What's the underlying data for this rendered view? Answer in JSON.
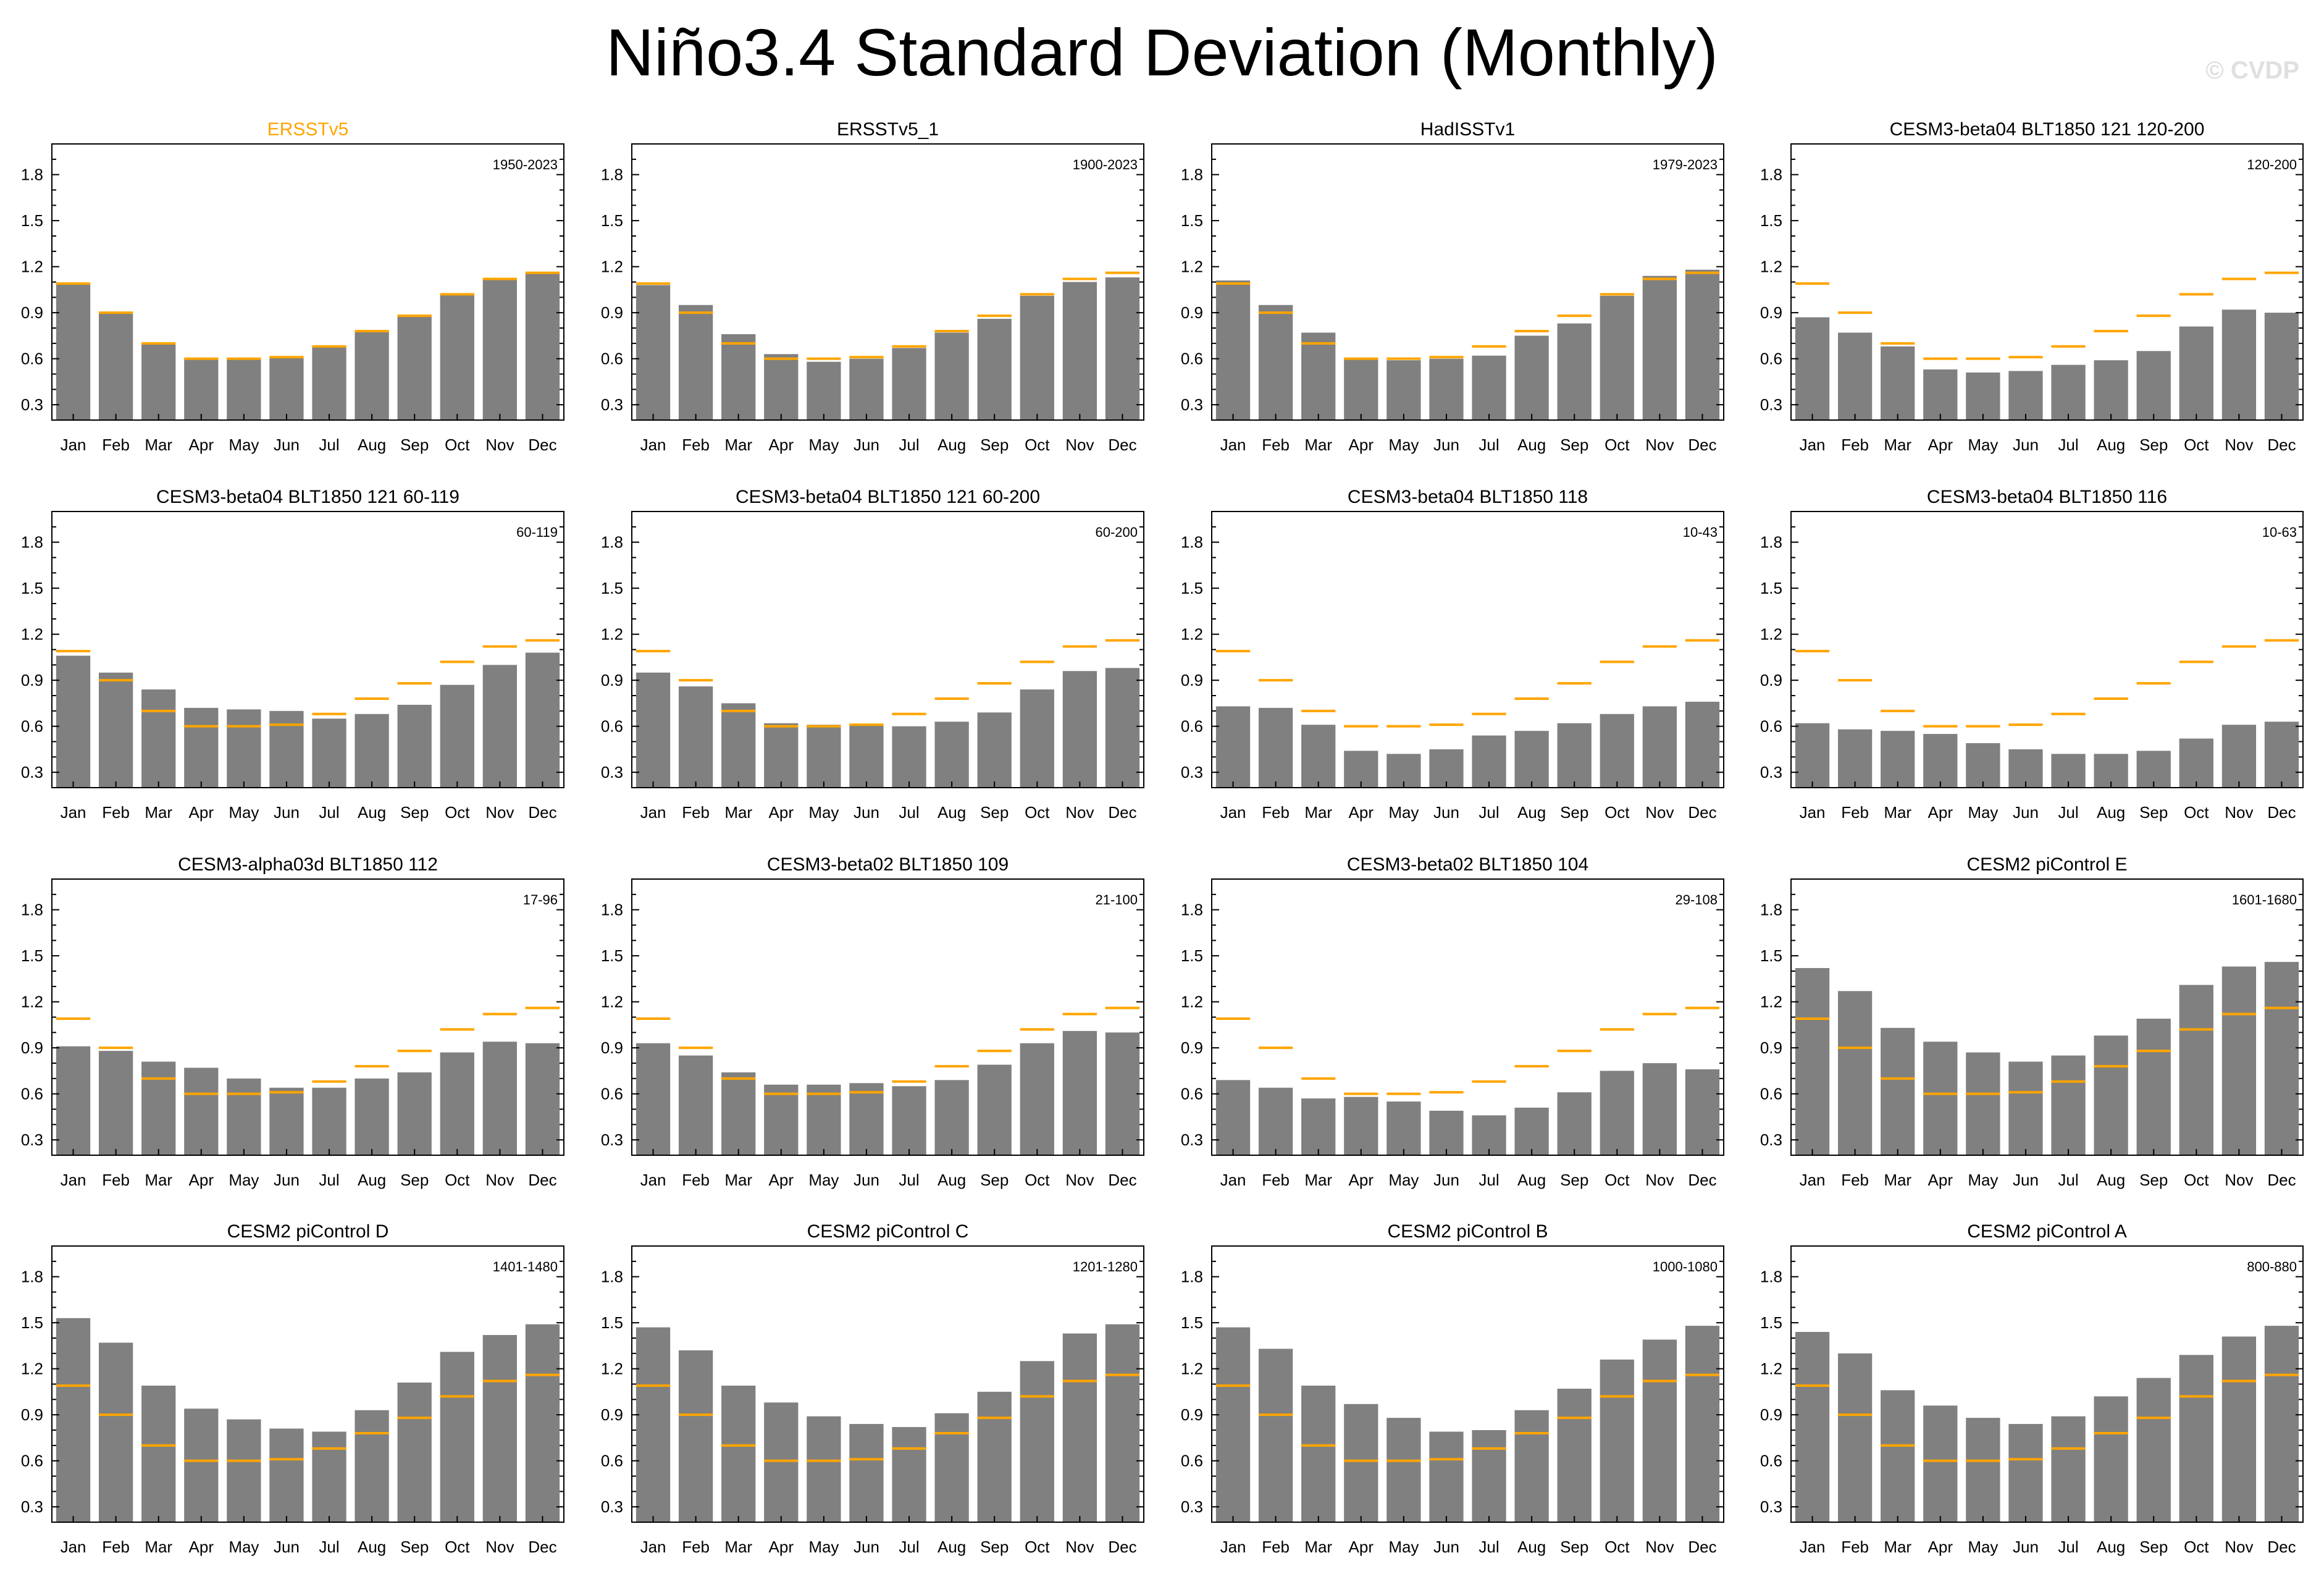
{
  "title": "Niño3.4 Standard Deviation (Monthly)",
  "watermark": "© CVDP",
  "colors": {
    "bar": "#808080",
    "reference": "#ffa500",
    "highlight_title": "#ffa500",
    "axis": "#000000"
  },
  "chart_data": {
    "type": "bar",
    "categories": [
      "Jan",
      "Feb",
      "Mar",
      "Apr",
      "May",
      "Jun",
      "Jul",
      "Aug",
      "Sep",
      "Oct",
      "Nov",
      "Dec"
    ],
    "ylim": [
      0.2,
      2.0
    ],
    "yticks": [
      0.3,
      0.6,
      0.9,
      1.2,
      1.5,
      1.8
    ],
    "ytick_labels": [
      "0.3",
      "0.6",
      "0.9",
      "1.2",
      "1.5",
      "1.8"
    ],
    "reference": {
      "name": "ERSSTv5",
      "values": [
        1.09,
        0.9,
        0.7,
        0.6,
        0.6,
        0.61,
        0.68,
        0.78,
        0.88,
        1.02,
        1.12,
        1.16
      ]
    },
    "panels": [
      {
        "title": "ERSSTv5",
        "period": "1950-2023",
        "is_reference": true,
        "values": [
          1.09,
          0.9,
          0.7,
          0.6,
          0.6,
          0.61,
          0.68,
          0.78,
          0.88,
          1.02,
          1.12,
          1.16
        ]
      },
      {
        "title": "ERSSTv5_1",
        "period": "1900-2023",
        "is_reference": false,
        "values": [
          1.08,
          0.95,
          0.76,
          0.63,
          0.58,
          0.6,
          0.67,
          0.77,
          0.86,
          1.01,
          1.1,
          1.13
        ]
      },
      {
        "title": "HadISSTv1",
        "period": "1979-2023",
        "is_reference": false,
        "values": [
          1.11,
          0.95,
          0.77,
          0.6,
          0.59,
          0.6,
          0.62,
          0.75,
          0.83,
          1.01,
          1.14,
          1.18
        ]
      },
      {
        "title": "CESM3-beta04 BLT1850 121 120-200",
        "period": "120-200",
        "is_reference": false,
        "values": [
          0.87,
          0.77,
          0.68,
          0.53,
          0.51,
          0.52,
          0.56,
          0.59,
          0.65,
          0.81,
          0.92,
          0.9
        ]
      },
      {
        "title": "CESM3-beta04 BLT1850 121 60-119",
        "period": "60-119",
        "is_reference": false,
        "values": [
          1.06,
          0.95,
          0.84,
          0.72,
          0.71,
          0.7,
          0.65,
          0.68,
          0.74,
          0.87,
          1.0,
          1.08
        ]
      },
      {
        "title": "CESM3-beta04 BLT1850 121 60-200",
        "period": "60-200",
        "is_reference": false,
        "values": [
          0.95,
          0.86,
          0.75,
          0.62,
          0.61,
          0.61,
          0.6,
          0.63,
          0.69,
          0.84,
          0.96,
          0.98
        ]
      },
      {
        "title": "CESM3-beta04 BLT1850 118",
        "period": "10-43",
        "is_reference": false,
        "values": [
          0.73,
          0.72,
          0.61,
          0.44,
          0.42,
          0.45,
          0.54,
          0.57,
          0.62,
          0.68,
          0.73,
          0.76
        ]
      },
      {
        "title": "CESM3-beta04 BLT1850 116",
        "period": "10-63",
        "is_reference": false,
        "values": [
          0.62,
          0.58,
          0.57,
          0.55,
          0.49,
          0.45,
          0.42,
          0.42,
          0.44,
          0.52,
          0.61,
          0.63
        ]
      },
      {
        "title": "CESM3-alpha03d BLT1850 112",
        "period": "17-96",
        "is_reference": false,
        "values": [
          0.91,
          0.88,
          0.81,
          0.77,
          0.7,
          0.64,
          0.64,
          0.7,
          0.74,
          0.87,
          0.94,
          0.93
        ]
      },
      {
        "title": "CESM3-beta02 BLT1850 109",
        "period": "21-100",
        "is_reference": false,
        "values": [
          0.93,
          0.85,
          0.74,
          0.66,
          0.66,
          0.67,
          0.65,
          0.69,
          0.79,
          0.93,
          1.01,
          1.0
        ]
      },
      {
        "title": "CESM3-beta02 BLT1850 104",
        "period": "29-108",
        "is_reference": false,
        "values": [
          0.69,
          0.64,
          0.57,
          0.58,
          0.55,
          0.49,
          0.46,
          0.51,
          0.61,
          0.75,
          0.8,
          0.76
        ]
      },
      {
        "title": "CESM2 piControl E",
        "period": "1601-1680",
        "is_reference": false,
        "values": [
          1.42,
          1.27,
          1.03,
          0.94,
          0.87,
          0.81,
          0.85,
          0.98,
          1.09,
          1.31,
          1.43,
          1.46
        ]
      },
      {
        "title": "CESM2 piControl D",
        "period": "1401-1480",
        "is_reference": false,
        "values": [
          1.53,
          1.37,
          1.09,
          0.94,
          0.87,
          0.81,
          0.79,
          0.93,
          1.11,
          1.31,
          1.42,
          1.49
        ]
      },
      {
        "title": "CESM2 piControl C",
        "period": "1201-1280",
        "is_reference": false,
        "values": [
          1.47,
          1.32,
          1.09,
          0.98,
          0.89,
          0.84,
          0.82,
          0.91,
          1.05,
          1.25,
          1.43,
          1.49
        ]
      },
      {
        "title": "CESM2 piControl B",
        "period": "1000-1080",
        "is_reference": false,
        "values": [
          1.47,
          1.33,
          1.09,
          0.97,
          0.88,
          0.79,
          0.8,
          0.93,
          1.07,
          1.26,
          1.39,
          1.48
        ]
      },
      {
        "title": "CESM2 piControl A",
        "period": "800-880",
        "is_reference": false,
        "values": [
          1.44,
          1.3,
          1.06,
          0.96,
          0.88,
          0.84,
          0.89,
          1.02,
          1.14,
          1.29,
          1.41,
          1.48
        ]
      }
    ]
  }
}
